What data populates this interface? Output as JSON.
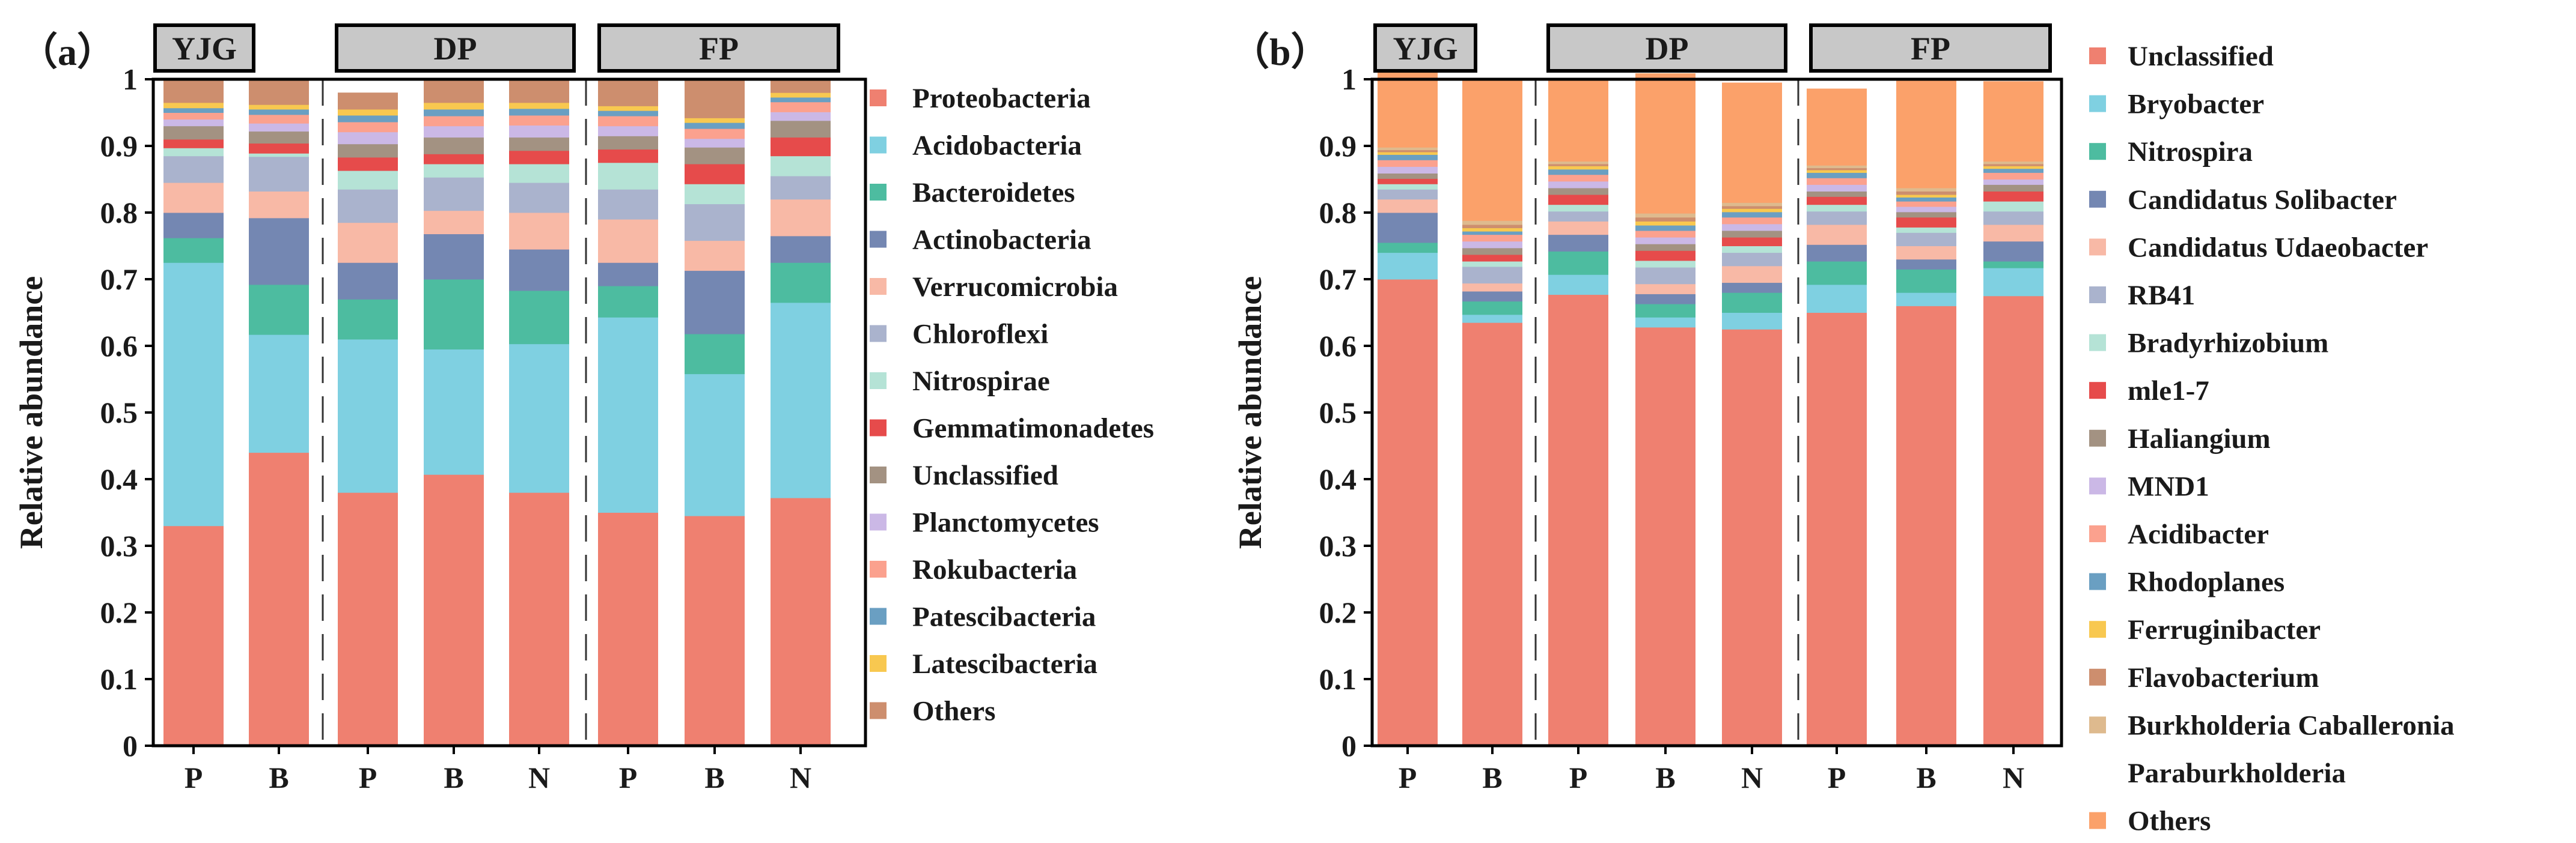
{
  "chart_data": [
    {
      "panel_label": "（a）",
      "type": "bar",
      "stacked": true,
      "ylabel": "Relative abundance",
      "ylim": [
        0,
        1
      ],
      "yticks": [
        "0",
        "0.1",
        "0.2",
        "0.3",
        "0.4",
        "0.5",
        "0.6",
        "0.7",
        "0.8",
        "0.9",
        "1"
      ],
      "groups": [
        {
          "name": "YJG",
          "categories": [
            "P",
            "B"
          ]
        },
        {
          "name": "DP",
          "categories": [
            "P",
            "B",
            "N"
          ]
        },
        {
          "name": "FP",
          "categories": [
            "P",
            "B",
            "N"
          ]
        }
      ],
      "series": [
        {
          "name": "Proteobacteria",
          "color": "#ef8070",
          "values": [
            0.33,
            0.44,
            0.38,
            0.407,
            0.38,
            0.35,
            0.345,
            0.372
          ]
        },
        {
          "name": "Acidobacteria",
          "color": "#7fd0e1",
          "values": [
            0.395,
            0.177,
            0.23,
            0.188,
            0.223,
            0.293,
            0.213,
            0.293
          ]
        },
        {
          "name": "Bacteroidetes",
          "color": "#4dbca0",
          "values": [
            0.037,
            0.075,
            0.06,
            0.105,
            0.08,
            0.047,
            0.06,
            0.06
          ]
        },
        {
          "name": "Actinobacteria",
          "color": "#7487b2",
          "values": [
            0.038,
            0.1,
            0.055,
            0.068,
            0.062,
            0.035,
            0.095,
            0.04
          ]
        },
        {
          "name": "Verrucomicrobia",
          "color": "#f8b9a6",
          "values": [
            0.045,
            0.04,
            0.06,
            0.035,
            0.055,
            0.065,
            0.045,
            0.055
          ]
        },
        {
          "name": "Chloroflexi",
          "color": "#aab3cd",
          "values": [
            0.04,
            0.052,
            0.05,
            0.05,
            0.045,
            0.045,
            0.055,
            0.035
          ]
        },
        {
          "name": "Nitrospirae",
          "color": "#b5e3d6",
          "values": [
            0.012,
            0.005,
            0.028,
            0.02,
            0.028,
            0.04,
            0.03,
            0.03
          ]
        },
        {
          "name": "Gemmatimonadetes",
          "color": "#e64b4b",
          "values": [
            0.013,
            0.015,
            0.02,
            0.015,
            0.02,
            0.02,
            0.03,
            0.028
          ]
        },
        {
          "name": "Unclassified",
          "color": "#a39282",
          "values": [
            0.02,
            0.018,
            0.02,
            0.025,
            0.02,
            0.02,
            0.025,
            0.025
          ]
        },
        {
          "name": "Planctomycetes",
          "color": "#cbb8e6",
          "values": [
            0.01,
            0.012,
            0.018,
            0.017,
            0.018,
            0.015,
            0.013,
            0.013
          ]
        },
        {
          "name": "Rokubacteria",
          "color": "#fba18e",
          "values": [
            0.01,
            0.013,
            0.015,
            0.015,
            0.015,
            0.015,
            0.015,
            0.015
          ]
        },
        {
          "name": "Patescibacteria",
          "color": "#6a9fc2",
          "values": [
            0.007,
            0.008,
            0.01,
            0.01,
            0.01,
            0.008,
            0.009,
            0.007
          ]
        },
        {
          "name": "Latescibacteria",
          "color": "#f8c850",
          "values": [
            0.008,
            0.007,
            0.009,
            0.01,
            0.009,
            0.007,
            0.007,
            0.007
          ]
        },
        {
          "name": "Others",
          "color": "#cd8e6e",
          "values": [
            0.035,
            0.038,
            0.025,
            0.035,
            0.035,
            0.04,
            0.058,
            0.02
          ]
        }
      ]
    },
    {
      "panel_label": "（b）",
      "type": "bar",
      "stacked": true,
      "ylabel": "Relative abundance",
      "ylim": [
        0,
        1
      ],
      "yticks": [
        "0",
        "0.1",
        "0.2",
        "0.3",
        "0.4",
        "0.5",
        "0.6",
        "0.7",
        "0.8",
        "0.9",
        "1"
      ],
      "groups": [
        {
          "name": "YJG",
          "categories": [
            "P",
            "B"
          ]
        },
        {
          "name": "DP",
          "categories": [
            "P",
            "B",
            "N"
          ]
        },
        {
          "name": "FP",
          "categories": [
            "P",
            "B",
            "N"
          ]
        }
      ],
      "series": [
        {
          "name": "Unclassified",
          "color": "#ef8070",
          "values": [
            0.7,
            0.635,
            0.677,
            0.628,
            0.625,
            0.65,
            0.66,
            0.675
          ]
        },
        {
          "name": "Bryobacter",
          "color": "#7fd0e1",
          "values": [
            0.04,
            0.012,
            0.03,
            0.015,
            0.025,
            0.042,
            0.02,
            0.042
          ]
        },
        {
          "name": "Nitrospira",
          "color": "#4dbca0",
          "values": [
            0.015,
            0.02,
            0.035,
            0.02,
            0.03,
            0.035,
            0.035,
            0.01
          ]
        },
        {
          "name": "Candidatus Solibacter",
          "color": "#7487b2",
          "values": [
            0.045,
            0.015,
            0.025,
            0.015,
            0.015,
            0.025,
            0.015,
            0.03
          ]
        },
        {
          "name": "Candidatus Udaeobacter",
          "color": "#f8b9a6",
          "values": [
            0.02,
            0.012,
            0.02,
            0.015,
            0.025,
            0.03,
            0.02,
            0.025
          ]
        },
        {
          "name": "RB41",
          "color": "#aab3cd",
          "values": [
            0.015,
            0.025,
            0.015,
            0.025,
            0.02,
            0.02,
            0.02,
            0.02
          ]
        },
        {
          "name": "Bradyrhizobium",
          "color": "#b5e3d6",
          "values": [
            0.008,
            0.008,
            0.01,
            0.01,
            0.01,
            0.01,
            0.008,
            0.015
          ]
        },
        {
          "name": "mle1-7",
          "color": "#e64b4b",
          "values": [
            0.008,
            0.01,
            0.015,
            0.015,
            0.013,
            0.012,
            0.015,
            0.015
          ]
        },
        {
          "name": "Haliangium",
          "color": "#a39282",
          "values": [
            0.008,
            0.01,
            0.01,
            0.01,
            0.01,
            0.008,
            0.008,
            0.01
          ]
        },
        {
          "name": "MND1",
          "color": "#cbb8e6",
          "values": [
            0.01,
            0.01,
            0.01,
            0.01,
            0.01,
            0.01,
            0.008,
            0.008
          ]
        },
        {
          "name": "Acidibacter",
          "color": "#fba18e",
          "values": [
            0.01,
            0.01,
            0.01,
            0.01,
            0.01,
            0.01,
            0.008,
            0.01
          ]
        },
        {
          "name": "Rhodoplanes",
          "color": "#6a9fc2",
          "values": [
            0.008,
            0.005,
            0.008,
            0.008,
            0.008,
            0.008,
            0.006,
            0.006
          ]
        },
        {
          "name": "Ferruginibacter",
          "color": "#f8c850",
          "values": [
            0.004,
            0.005,
            0.005,
            0.006,
            0.005,
            0.004,
            0.004,
            0.004
          ]
        },
        {
          "name": "Flavobacterium",
          "color": "#cd8e6e",
          "values": [
            0.003,
            0.005,
            0.003,
            0.006,
            0.004,
            0.003,
            0.005,
            0.003
          ]
        },
        {
          "name": "Burkholderia Caballeronia Paraburkholderia",
          "color": "#deba8e",
          "values": [
            0.004,
            0.006,
            0.004,
            0.006,
            0.005,
            0.004,
            0.005,
            0.004
          ]
        },
        {
          "name": "Others",
          "color": "#fba16a",
          "values": [
            0.12,
            0.21,
            0.123,
            0.21,
            0.18,
            0.115,
            0.165,
            0.12
          ]
        }
      ],
      "legend_lines": [
        {
          "text": "Unclassified",
          "swatch": 0
        },
        {
          "text": "Bryobacter",
          "swatch": 1
        },
        {
          "text": "Nitrospira",
          "swatch": 2
        },
        {
          "text": "Candidatus Solibacter",
          "swatch": 3
        },
        {
          "text": "Candidatus Udaeobacter",
          "swatch": 4
        },
        {
          "text": "RB41",
          "swatch": 5
        },
        {
          "text": "Bradyrhizobium",
          "swatch": 6
        },
        {
          "text": "mle1-7",
          "swatch": 7
        },
        {
          "text": "Haliangium",
          "swatch": 8
        },
        {
          "text": "MND1",
          "swatch": 9
        },
        {
          "text": "Acidibacter",
          "swatch": 10
        },
        {
          "text": "Rhodoplanes",
          "swatch": 11
        },
        {
          "text": "Ferruginibacter",
          "swatch": 12
        },
        {
          "text": "Flavobacterium",
          "swatch": 13
        },
        {
          "text": "Burkholderia Caballeronia",
          "swatch": 14
        },
        {
          "text": "Paraburkholderia",
          "swatch": -1
        },
        {
          "text": "Others",
          "swatch": 15
        }
      ]
    }
  ]
}
